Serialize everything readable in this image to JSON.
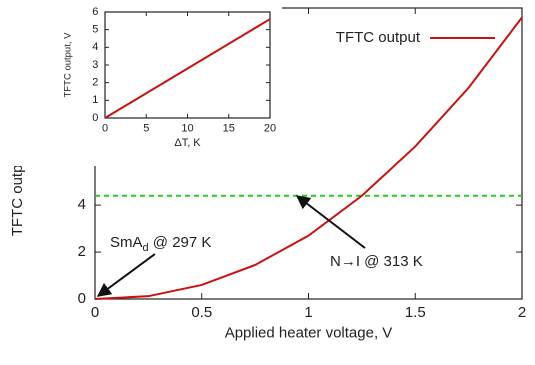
{
  "chart_data": [
    {
      "type": "line",
      "xlabel": "Applied heater voltage, V",
      "ylabel": "TFTC output, V",
      "x": [
        0,
        0.25,
        0.5,
        0.75,
        1,
        1.25,
        1.5,
        1.75,
        2
      ],
      "series": [
        {
          "name": "TFTC output",
          "color": "#cc1111",
          "values": [
            0,
            0.12,
            0.6,
            1.45,
            2.7,
            4.4,
            6.5,
            9.0,
            12.0
          ]
        }
      ],
      "xlim": [
        0,
        2
      ],
      "ylim": [
        0,
        12.4
      ],
      "xticks": [
        0,
        0.5,
        1,
        1.5,
        2
      ],
      "yticks": [
        0,
        2,
        4
      ],
      "reference_lines": [
        {
          "value": 4.4,
          "color": "#22cc22"
        }
      ],
      "annotations": [
        {
          "parts": [
            "SmA",
            "d",
            " @ 297 K"
          ]
        },
        {
          "parts": [
            "N→I @ 313 K"
          ]
        }
      ],
      "legend": "top-right"
    },
    {
      "type": "line",
      "xlabel": "ΔT, K",
      "ylabel": "TFTC output, V",
      "x": [
        0,
        20
      ],
      "series": [
        {
          "color": "#cc1111",
          "values": [
            0,
            5.6
          ]
        }
      ],
      "xlim": [
        0,
        20
      ],
      "ylim": [
        0,
        6
      ],
      "xticks": [
        0,
        5,
        10,
        15,
        20
      ],
      "yticks": [
        0,
        1,
        2,
        3,
        4,
        5,
        6
      ]
    }
  ]
}
